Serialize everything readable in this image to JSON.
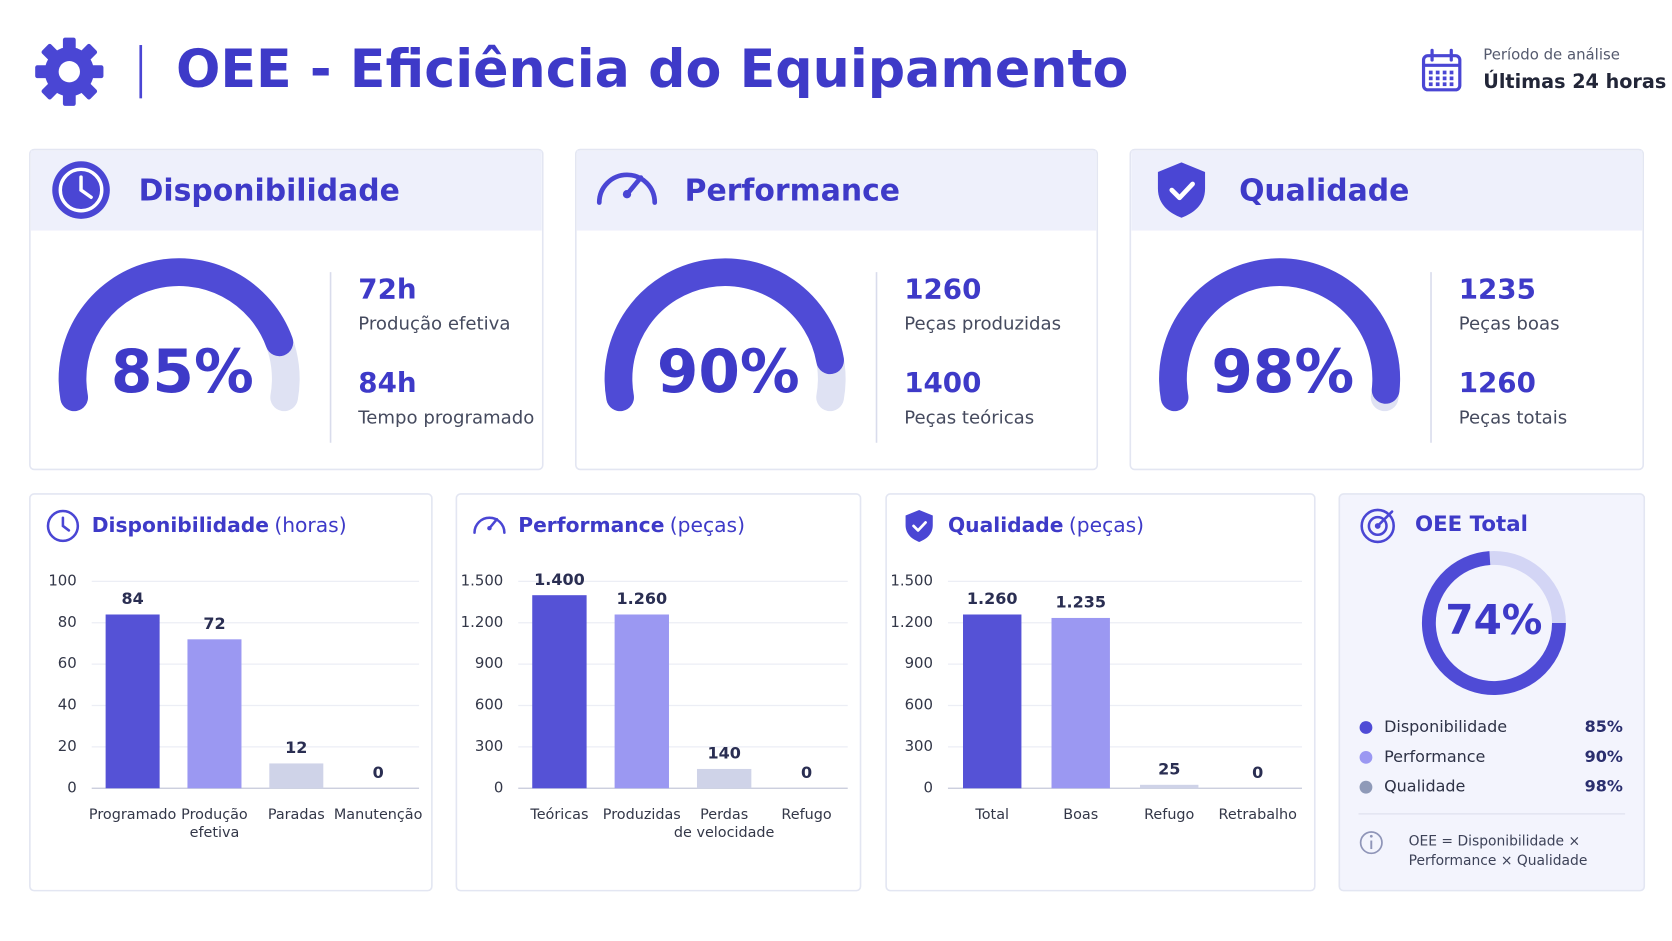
{
  "header": {
    "title": "OEE - Eficiência do Equipamento",
    "period_label": "Período de análise",
    "period": "Últimas 24 horas"
  },
  "kpis": [
    {
      "title": "Disponibilidade",
      "value": 85,
      "value_label": "85%",
      "color": "#4f4bd6",
      "track_color": "#dfe2f3",
      "stats": [
        {
          "value": "72h",
          "label": "Produção efetiva"
        },
        {
          "value": "84h",
          "label": "Tempo programado"
        }
      ]
    },
    {
      "title": "Performance",
      "value": 90,
      "value_label": "90%",
      "color": "#4f4bd6",
      "track_color": "#dfe2f3",
      "stats": [
        {
          "value": "1260",
          "label": "Peças produzidas"
        },
        {
          "value": "1400",
          "label": "Peças teóricas"
        }
      ]
    },
    {
      "title": "Qualidade",
      "value": 98,
      "value_label": "98%",
      "color": "#4f4bd6",
      "track_color": "#dfe2f3",
      "stats": [
        {
          "value": "1235",
          "label": "Peças boas"
        },
        {
          "value": "1260",
          "label": "Peças totais"
        }
      ]
    }
  ],
  "chart_data": [
    {
      "type": "bar",
      "title": "Disponibilidade",
      "subtitle": "(horas)",
      "categories": [
        "Programado",
        "Produção\nefetiva",
        "Paradas",
        "Manutenção"
      ],
      "values": [
        84,
        72,
        12,
        0
      ],
      "colors": [
        "#5552d6",
        "#9b98f2",
        "#cfd3e8",
        "#cfd3e8"
      ],
      "ylim": [
        0,
        100
      ],
      "yticks": [
        0,
        20,
        40,
        60,
        80,
        100
      ],
      "grid": true
    },
    {
      "type": "bar",
      "title": "Performance",
      "subtitle": "(peças)",
      "categories": [
        "Teóricas",
        "Produzidas",
        "Perdas\nde velocidade",
        "Refugo"
      ],
      "values": [
        1400,
        1260,
        140,
        0
      ],
      "value_labels": [
        "1.400",
        "1.260",
        "140",
        "0"
      ],
      "colors": [
        "#5552d6",
        "#9b98f2",
        "#cfd3e8",
        "#cfd3e8"
      ],
      "ylim": [
        0,
        1500
      ],
      "yticks": [
        0,
        300,
        600,
        900,
        {
          "value": 1200,
          "label": "1.200"
        },
        {
          "value": 1500,
          "label": "1.500"
        }
      ],
      "grid": true
    },
    {
      "type": "bar",
      "title": "Qualidade",
      "subtitle": "(peças)",
      "categories": [
        "Total",
        "Boas",
        "Refugo",
        "Retrabalho"
      ],
      "values": [
        1260,
        1235,
        25,
        0
      ],
      "value_labels": [
        "1.260",
        "1.235",
        "25",
        "0"
      ],
      "colors": [
        "#5552d6",
        "#9b98f2",
        "#cfd3e8",
        "#cfd3e8"
      ],
      "ylim": [
        0,
        1500
      ],
      "yticks": [
        0,
        300,
        600,
        900,
        {
          "value": 1200,
          "label": "1.200"
        },
        {
          "value": 1500,
          "label": "1.500"
        }
      ],
      "grid": true
    }
  ],
  "oee": {
    "type": "donut",
    "title": "OEE Total",
    "value": 74,
    "value_label": "74%",
    "color": "#4f4bd6",
    "track_color": "#d3d5f5",
    "legend": [
      {
        "name": "Disponibilidade",
        "value_label": "85%",
        "color": "#4f4bd6"
      },
      {
        "name": "Performance",
        "value_label": "90%",
        "color": "#9b98f2"
      },
      {
        "name": "Qualidade",
        "value_label": "98%",
        "color": "#8f9ab8"
      }
    ],
    "formula": "OEE = Disponibilidade ×\nPerformance × Qualidade"
  }
}
